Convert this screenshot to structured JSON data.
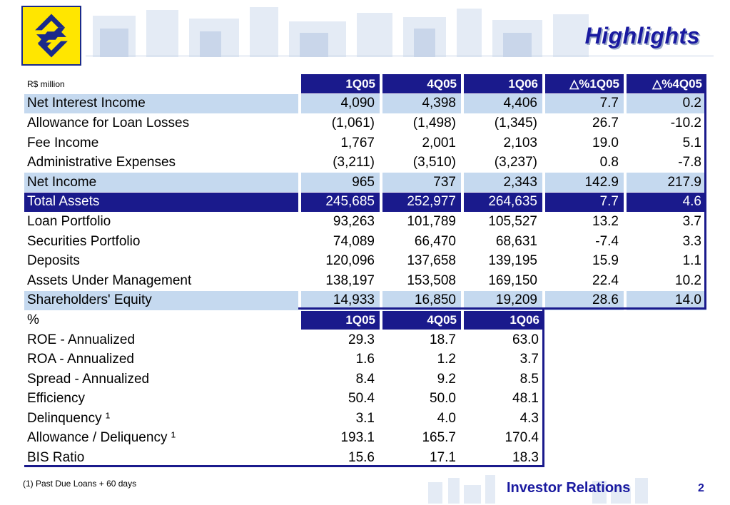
{
  "header": {
    "title": "Highlights"
  },
  "table1": {
    "units": "R$ million",
    "columns": [
      "1Q05",
      "4Q05",
      "1Q06",
      "△%1Q05",
      "△%4Q05"
    ],
    "rows": [
      {
        "label": "Net Interest Income",
        "values": [
          "4,090",
          "4,398",
          "4,406",
          "7.7",
          "0.2"
        ]
      },
      {
        "label": "Allowance for Loan Losses",
        "values": [
          "(1,061)",
          "(1,498)",
          "(1,345)",
          "26.7",
          "-10.2"
        ]
      },
      {
        "label": "Fee Income",
        "values": [
          "1,767",
          "2,001",
          "2,103",
          "19.0",
          "5.1"
        ]
      },
      {
        "label": "Administrative Expenses",
        "values": [
          "(3,211)",
          "(3,510)",
          "(3,237)",
          "0.8",
          "-7.8"
        ]
      },
      {
        "label": "Net Income",
        "values": [
          "965",
          "737",
          "2,343",
          "142.9",
          "217.9"
        ]
      },
      {
        "label": "Total Assets",
        "values": [
          "245,685",
          "252,977",
          "264,635",
          "7.7",
          "4.6"
        ]
      },
      {
        "label": "Loan Portfolio",
        "values": [
          "93,263",
          "101,789",
          "105,527",
          "13.2",
          "3.7"
        ]
      },
      {
        "label": "Securities Portfolio",
        "values": [
          "74,089",
          "66,470",
          "68,631",
          "-7.4",
          "3.3"
        ]
      },
      {
        "label": "Deposits",
        "values": [
          "120,096",
          "137,658",
          "139,195",
          "15.9",
          "1.1"
        ]
      },
      {
        "label": "Assets Under Management",
        "values": [
          "138,197",
          "153,508",
          "169,150",
          "22.4",
          "10.2"
        ]
      },
      {
        "label": "Shareholders' Equity",
        "values": [
          "14,933",
          "16,850",
          "19,209",
          "28.6",
          "14.0"
        ]
      }
    ]
  },
  "table2": {
    "units": "%",
    "columns": [
      "1Q05",
      "4Q05",
      "1Q06"
    ],
    "rows": [
      {
        "label": "ROE - Annualized",
        "values": [
          "29.3",
          "18.7",
          "63.0"
        ]
      },
      {
        "label": "ROA - Annualized",
        "values": [
          "1.6",
          "1.2",
          "3.7"
        ]
      },
      {
        "label": "Spread - Annualized",
        "values": [
          "8.4",
          "9.2",
          "8.5"
        ]
      },
      {
        "label": "Efficiency",
        "values": [
          "50.4",
          "50.0",
          "48.1"
        ]
      },
      {
        "label": "Delinquency ¹",
        "values": [
          "3.1",
          "4.0",
          "4.3"
        ]
      },
      {
        "label": "Allowance / Deliquency ¹",
        "values": [
          "193.1",
          "165.7",
          "170.4"
        ]
      },
      {
        "label": "BIS Ratio",
        "values": [
          "15.6",
          "17.1",
          "18.3"
        ]
      }
    ]
  },
  "footer": {
    "footnote": "(1) Past Due Loans + 60 days",
    "brand": "Investor Relations",
    "page_number": "2"
  },
  "colors": {
    "navy": "#1a1a8c",
    "light_blue": "#c5d9ef",
    "logo_yellow": "#ffe600"
  }
}
